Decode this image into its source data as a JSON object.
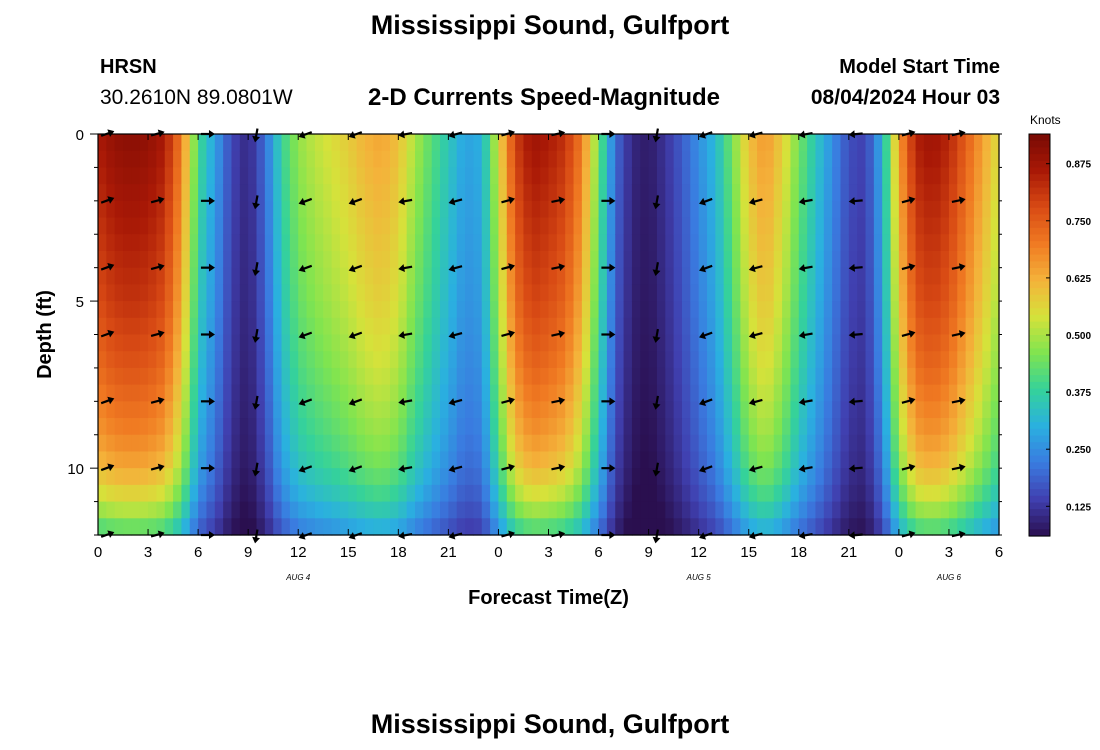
{
  "header": {
    "title": "Mississippi Sound, Gulfport",
    "station": "HRSN",
    "coords": "30.2610N  89.0801W",
    "subtitle": "2-D Currents Speed-Magnitude",
    "model_start_label": "Model Start Time",
    "model_start_value": "08/04/2024 Hour 03"
  },
  "footer": {
    "title": "Mississippi Sound, Gulfport"
  },
  "chart_data": {
    "type": "heatmap",
    "xlabel": "Forecast Time(Z)",
    "ylabel": "Depth (ft)",
    "x_start_hour": 0,
    "x_end_hour": 54,
    "xlim": [
      0,
      54
    ],
    "ylim": [
      12,
      0
    ],
    "x_tick_labels": [
      "0",
      "3",
      "6",
      "9",
      "12",
      "15",
      "18",
      "21",
      "0",
      "3",
      "6",
      "9",
      "12",
      "15",
      "18",
      "21",
      "0",
      "3",
      "6"
    ],
    "y_tick_labels": [
      "0",
      "5",
      "10"
    ],
    "date_labels": [
      {
        "hour": 12,
        "text": "AUG 4"
      },
      {
        "hour": 36,
        "text": "AUG 5"
      },
      {
        "hour": 51,
        "text": "AUG 6"
      }
    ],
    "colorbar": {
      "unit": "Knots",
      "min": 0.06,
      "max": 0.94,
      "ticks": [
        "0.125",
        "0.250",
        "0.375",
        "0.500",
        "0.625",
        "0.750",
        "0.875"
      ],
      "colors": [
        "#2a0f4f",
        "#4040b0",
        "#3a7be0",
        "#2ab0e0",
        "#35d29a",
        "#7fe450",
        "#d6e23a",
        "#f4b23a",
        "#f07a22",
        "#d84a14",
        "#a81806",
        "#780a04"
      ]
    },
    "surface_speed_knots": [
      0.86,
      0.9,
      0.91,
      0.9,
      0.86,
      0.7,
      0.4,
      0.28,
      0.15,
      0.1,
      0.2,
      0.38,
      0.48,
      0.52,
      0.55,
      0.58,
      0.62,
      0.64,
      0.6,
      0.5,
      0.42,
      0.35,
      0.28,
      0.3,
      0.55,
      0.8,
      0.88,
      0.86,
      0.82,
      0.7,
      0.45,
      0.2,
      0.1,
      0.08,
      0.12,
      0.18,
      0.25,
      0.32,
      0.45,
      0.6,
      0.66,
      0.58,
      0.45,
      0.35,
      0.25,
      0.16,
      0.14,
      0.3,
      0.65,
      0.85,
      0.88,
      0.84,
      0.75,
      0.65,
      0.55
    ],
    "depth_attenuation": [
      1.0,
      0.98,
      0.96,
      0.94,
      0.92,
      0.9,
      0.87,
      0.84,
      0.8,
      0.76,
      0.7,
      0.6,
      0.45
    ],
    "arrow_depths_ft": [
      0,
      2,
      4,
      6,
      8,
      10,
      12
    ],
    "arrow_hours": [
      0,
      3,
      6,
      9,
      12,
      15,
      18,
      21,
      24,
      27,
      30,
      33,
      36,
      39,
      42,
      45,
      48,
      51
    ],
    "arrow_direction_deg": [
      20,
      15,
      0,
      -100,
      200,
      200,
      190,
      195,
      15,
      12,
      0,
      -100,
      200,
      195,
      190,
      185,
      15,
      12
    ]
  }
}
